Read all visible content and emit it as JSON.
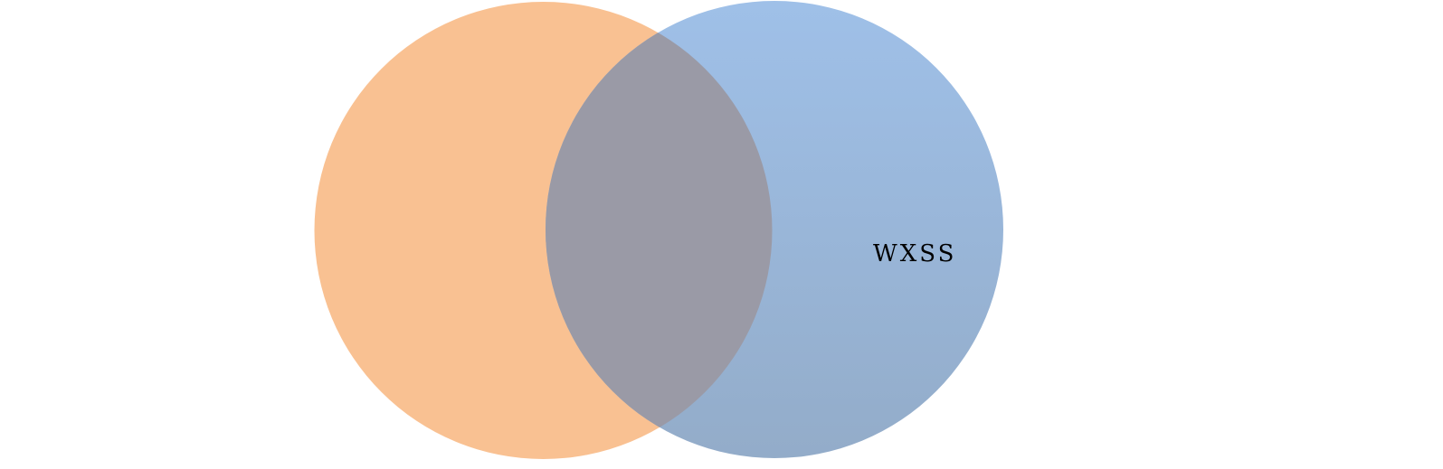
{
  "diagram": {
    "type": "venn",
    "sets": [
      {
        "id": "left",
        "label": "",
        "color": "#f7a864"
      },
      {
        "id": "right",
        "label": "WXSS",
        "color": "#86acdf"
      }
    ],
    "overlap_color": "#9a9aa7"
  }
}
